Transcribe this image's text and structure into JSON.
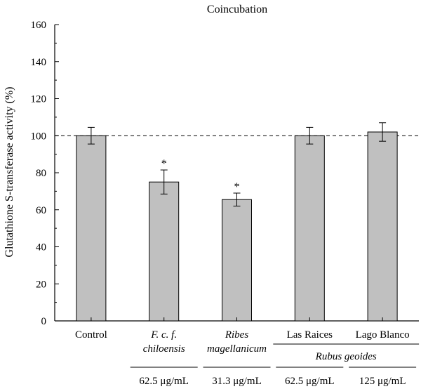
{
  "chart_data": {
    "type": "bar",
    "title": "Coincubation",
    "ylabel": "Glutathione S-transferase activity (%)",
    "xlabel": "",
    "ylim": [
      0,
      160
    ],
    "yticks": [
      "0",
      "20",
      "40",
      "60",
      "80",
      "100",
      "120",
      "140",
      "160"
    ],
    "reference_line": 100,
    "categories": [
      {
        "lines": [
          "Control"
        ],
        "italic": [
          false
        ]
      },
      {
        "lines": [
          "F. c. f.",
          "chiloensis"
        ],
        "italic": [
          true,
          true
        ]
      },
      {
        "lines": [
          "Ribes",
          "magellanicum"
        ],
        "italic": [
          true,
          true
        ]
      },
      {
        "lines": [
          "Las Raices"
        ],
        "italic": [
          false
        ]
      },
      {
        "lines": [
          "Lago Blanco"
        ],
        "italic": [
          false
        ]
      }
    ],
    "values": [
      100,
      75,
      65.5,
      100,
      102
    ],
    "errors": [
      4.5,
      6.5,
      3.5,
      4.5,
      5
    ],
    "significance": [
      "",
      "*",
      "*",
      "",
      ""
    ],
    "group_label": "Rubus geoides",
    "concentrations": [
      "62.5 μg/mL",
      "31.3 μg/mL",
      "62.5 μg/mL",
      "125 μg/mL"
    ],
    "bar_color": "#c0c0c0"
  }
}
